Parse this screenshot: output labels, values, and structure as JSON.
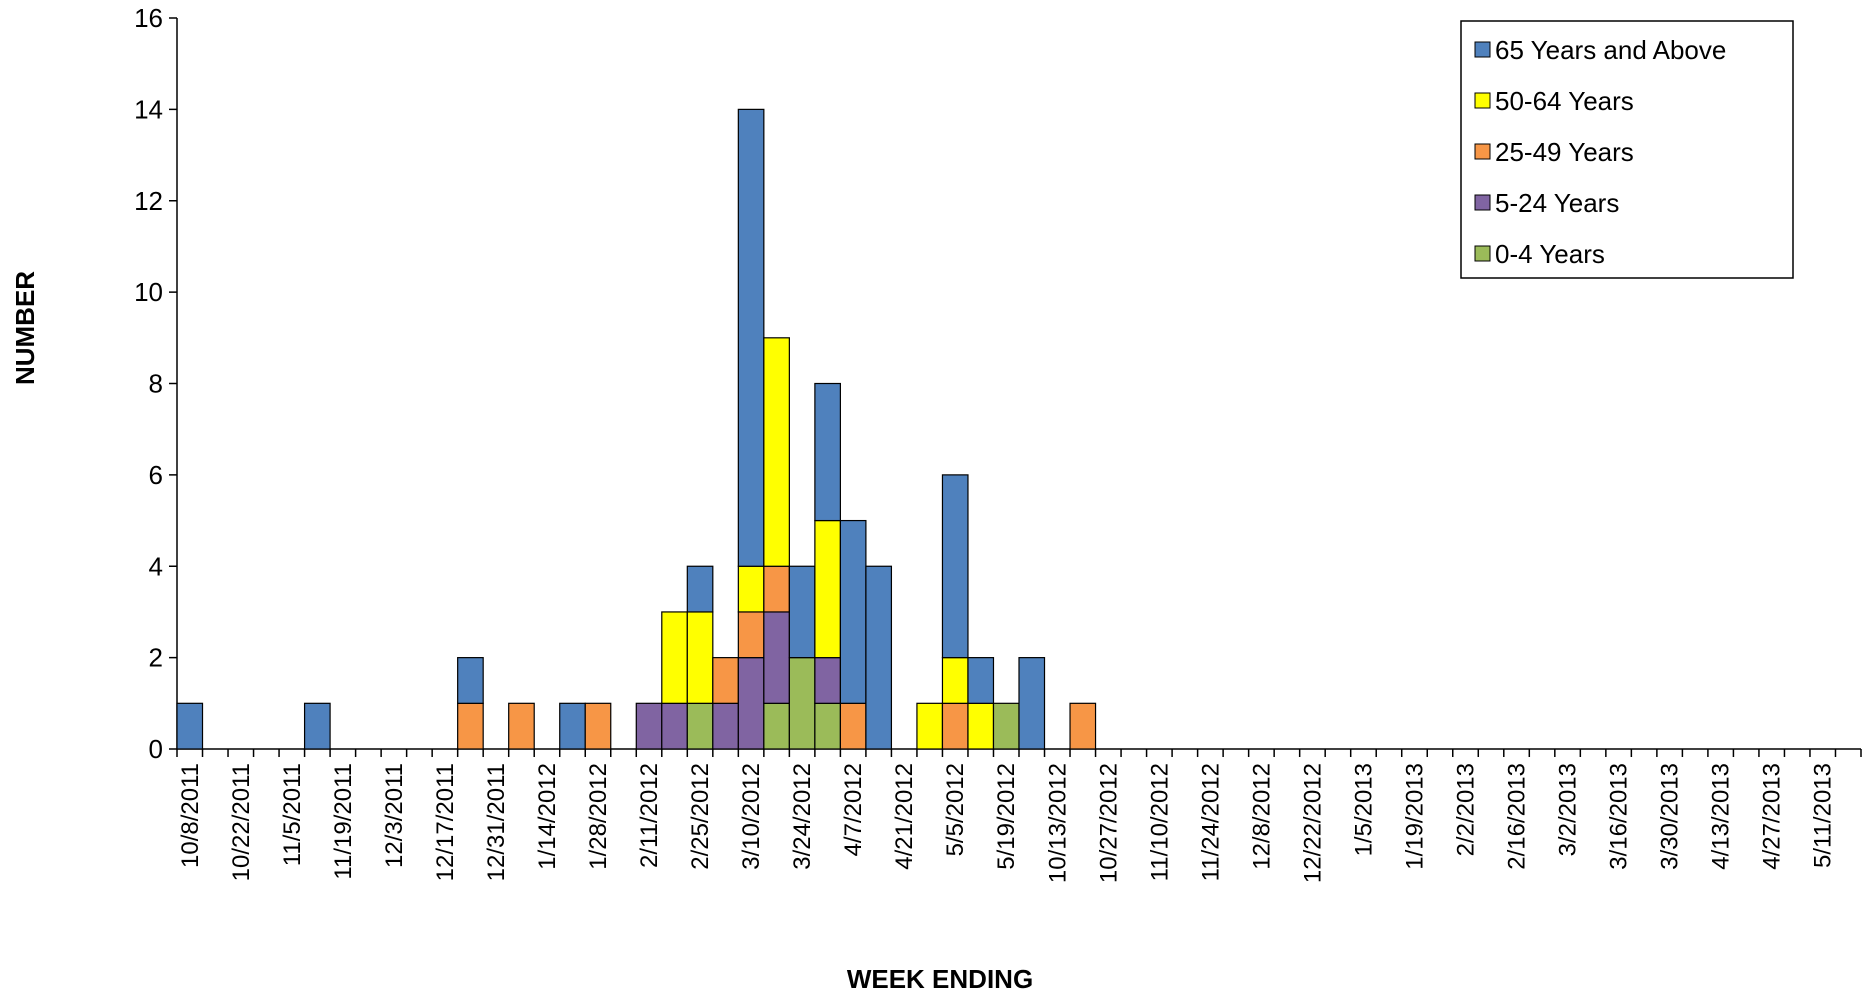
{
  "chart_data": {
    "type": "stacked_bar",
    "x_label": "WEEK ENDING",
    "y_label": "NUMBER",
    "categories": [
      "10/8/2011",
      null,
      "10/22/2011",
      null,
      "11/5/2011",
      null,
      "11/19/2011",
      null,
      "12/3/2011",
      null,
      "12/17/2011",
      null,
      "12/31/2011",
      null,
      "1/14/2012",
      null,
      "1/28/2012",
      null,
      "2/11/2012",
      null,
      "2/25/2012",
      null,
      "3/10/2012",
      null,
      "3/24/2012",
      null,
      "4/7/2012",
      null,
      "4/21/2012",
      null,
      "5/5/2012",
      null,
      "5/19/2012",
      null,
      "10/13/2012",
      null,
      "10/27/2012",
      null,
      "11/10/2012",
      null,
      "11/24/2012",
      null,
      "12/8/2012",
      null,
      "12/22/2012",
      null,
      "1/5/2013",
      null,
      "1/19/2013",
      null,
      "2/2/2013",
      null,
      "2/16/2013",
      null,
      "3/2/2013",
      null,
      "3/16/2013",
      null,
      "3/30/2013",
      null,
      "4/13/2013",
      null,
      "4/27/2013",
      null,
      "5/11/2013",
      null
    ],
    "series": [
      {
        "name": "65 Years and Above",
        "color": "#4f81bd",
        "values": [
          1,
          0,
          0,
          0,
          0,
          1,
          0,
          0,
          0,
          0,
          0,
          1,
          0,
          0,
          0,
          1,
          0,
          0,
          0,
          0,
          1,
          0,
          10,
          0,
          2,
          3,
          4,
          4,
          0,
          0,
          4,
          1,
          0,
          2,
          0,
          0,
          0,
          0,
          0,
          0,
          0,
          0,
          0,
          0,
          0,
          0,
          0,
          0,
          0,
          0,
          0,
          0,
          0,
          0,
          0,
          0,
          0,
          0,
          0,
          0,
          0,
          0,
          0,
          0,
          0,
          0
        ]
      },
      {
        "name": "50-64 Years",
        "color": "#ffff00",
        "values": [
          0,
          0,
          0,
          0,
          0,
          0,
          0,
          0,
          0,
          0,
          0,
          0,
          0,
          0,
          0,
          0,
          0,
          0,
          0,
          2,
          2,
          0,
          1,
          5,
          0,
          3,
          0,
          0,
          0,
          1,
          1,
          1,
          0,
          0,
          0,
          0,
          0,
          0,
          0,
          0,
          0,
          0,
          0,
          0,
          0,
          0,
          0,
          0,
          0,
          0,
          0,
          0,
          0,
          0,
          0,
          0,
          0,
          0,
          0,
          0,
          0,
          0,
          0,
          0,
          0,
          0
        ]
      },
      {
        "name": "25-49 Years",
        "color": "#f79646",
        "values": [
          0,
          0,
          0,
          0,
          0,
          0,
          0,
          0,
          0,
          0,
          0,
          1,
          0,
          1,
          0,
          0,
          1,
          0,
          0,
          0,
          0,
          1,
          1,
          1,
          0,
          0,
          1,
          0,
          0,
          0,
          1,
          0,
          0,
          0,
          0,
          1,
          0,
          0,
          0,
          0,
          0,
          0,
          0,
          0,
          0,
          0,
          0,
          0,
          0,
          0,
          0,
          0,
          0,
          0,
          0,
          0,
          0,
          0,
          0,
          0,
          0,
          0,
          0,
          0,
          0,
          0
        ]
      },
      {
        "name": "5-24 Years",
        "color": "#8064a2",
        "values": [
          0,
          0,
          0,
          0,
          0,
          0,
          0,
          0,
          0,
          0,
          0,
          0,
          0,
          0,
          0,
          0,
          0,
          0,
          1,
          1,
          0,
          1,
          2,
          2,
          0,
          1,
          0,
          0,
          0,
          0,
          0,
          0,
          0,
          0,
          0,
          0,
          0,
          0,
          0,
          0,
          0,
          0,
          0,
          0,
          0,
          0,
          0,
          0,
          0,
          0,
          0,
          0,
          0,
          0,
          0,
          0,
          0,
          0,
          0,
          0,
          0,
          0,
          0,
          0,
          0,
          0
        ]
      },
      {
        "name": "0-4 Years",
        "color": "#9bbb59",
        "values": [
          0,
          0,
          0,
          0,
          0,
          0,
          0,
          0,
          0,
          0,
          0,
          0,
          0,
          0,
          0,
          0,
          0,
          0,
          0,
          0,
          1,
          0,
          0,
          1,
          2,
          1,
          0,
          0,
          0,
          0,
          0,
          0,
          1,
          0,
          0,
          0,
          0,
          0,
          0,
          0,
          0,
          0,
          0,
          0,
          0,
          0,
          0,
          0,
          0,
          0,
          0,
          0,
          0,
          0,
          0,
          0,
          0,
          0,
          0,
          0,
          0,
          0,
          0,
          0,
          0,
          0
        ]
      }
    ],
    "ylim": [
      0,
      16
    ],
    "yticks": [
      0,
      2,
      4,
      6,
      8,
      10,
      12,
      14,
      16
    ],
    "grid": false,
    "legend_position": "upper right"
  }
}
